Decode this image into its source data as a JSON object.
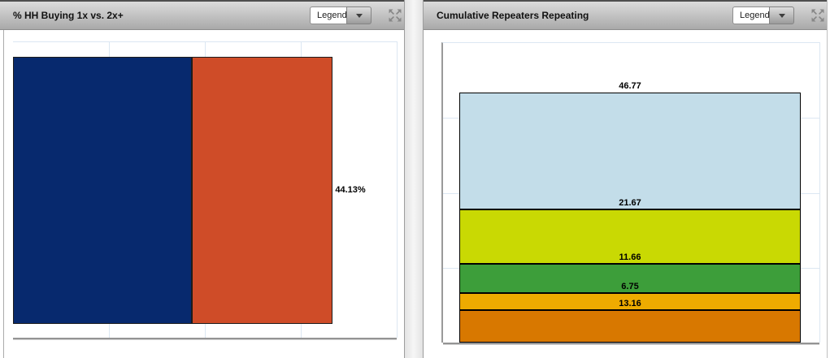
{
  "panels": [
    {
      "title": "% HH Buying 1x vs. 2x+",
      "legend_label": "Legend"
    },
    {
      "title": "Cumulative Repeaters Repeating",
      "legend_label": "Legend"
    }
  ],
  "chart_data": [
    {
      "type": "bar",
      "orientation": "horizontal",
      "stacked": true,
      "title": "% HH Buying 1x vs. 2x+",
      "series": [
        {
          "label": "55.87%",
          "value": 55.87,
          "color": "#07296e"
        },
        {
          "label": "44.13%",
          "value": 44.13,
          "color": "#cf4c28"
        }
      ],
      "value_axis_max": 120,
      "gridline_interval": 30,
      "grid": true,
      "axis_tick_labels_visible": false,
      "legend": "collapsed Legend dropdown"
    },
    {
      "type": "bar",
      "orientation": "vertical",
      "stacked": true,
      "title": "Cumulative Repeaters Repeating",
      "segments_top_to_bottom": [
        {
          "label": "46.77",
          "value": 46.77,
          "color": "#c3dde9"
        },
        {
          "label": "21.67",
          "value": 21.67,
          "color": "#c9d903"
        },
        {
          "label": "11.66",
          "value": 11.66,
          "color": "#3d9e3a"
        },
        {
          "label": "6.75",
          "value": 6.75,
          "color": "#eeab00"
        },
        {
          "label": "13.16",
          "value": 13.16,
          "color": "#d87800"
        }
      ],
      "value_axis_max": 120,
      "gridline_interval": 30,
      "grid": true,
      "axis_tick_labels_visible": false,
      "legend": "collapsed Legend dropdown"
    }
  ]
}
